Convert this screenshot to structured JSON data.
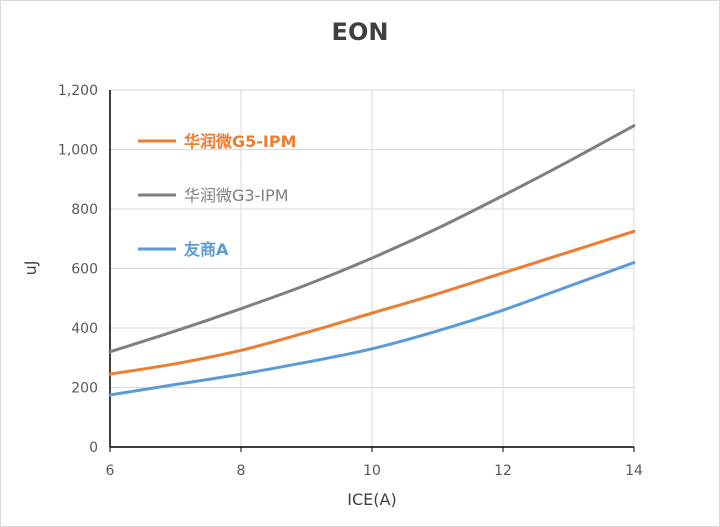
{
  "chart_data": {
    "type": "line",
    "title": "EON",
    "xlabel": "ICE(A)",
    "ylabel": "uJ",
    "xlim": [
      6,
      14
    ],
    "ylim": [
      0,
      1200
    ],
    "x_ticks": [
      "6",
      "8",
      "10",
      "12",
      "14"
    ],
    "y_ticks": [
      "0",
      "200",
      "400",
      "600",
      "800",
      "1,000",
      "1,200"
    ],
    "grid": true,
    "legend_position": "top-left inside",
    "x": [
      6,
      7,
      8,
      9,
      10,
      11,
      12,
      13,
      14
    ],
    "series": [
      {
        "name": "华润微G5-IPM",
        "color": "#ED7D31",
        "values": [
          245,
          280,
          325,
          385,
          450,
          515,
          585,
          655,
          725
        ]
      },
      {
        "name": "华润微G3-IPM",
        "color": "#7F7F7F",
        "values": [
          320,
          390,
          465,
          545,
          635,
          735,
          845,
          960,
          1080
        ]
      },
      {
        "name": "友商A",
        "color": "#5B9BD5",
        "values": [
          175,
          210,
          245,
          285,
          330,
          390,
          460,
          540,
          620
        ]
      }
    ]
  }
}
